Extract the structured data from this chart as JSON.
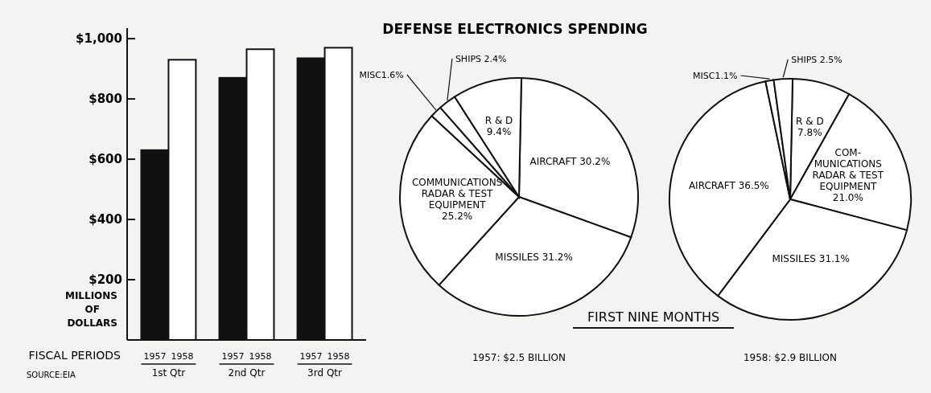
{
  "chart_data": [
    {
      "type": "bar",
      "categories": [
        "1st Qtr",
        "2nd Qtr",
        "3rd Qtr"
      ],
      "series": [
        {
          "name": "1957",
          "color": "#111111",
          "values": [
            630,
            870,
            935
          ]
        },
        {
          "name": "1958",
          "color": "#ffffff",
          "values": [
            930,
            965,
            970
          ]
        }
      ],
      "ylim": [
        0,
        1035
      ],
      "yticks": [
        {
          "value": 200,
          "label": "$200"
        },
        {
          "value": 400,
          "label": "$400"
        },
        {
          "value": 600,
          "label": "$600"
        },
        {
          "value": 800,
          "label": "$800"
        },
        {
          "value": 1000,
          "label": "$1,000"
        }
      ],
      "xlabel": "FISCAL PERIODS",
      "ylabel": "MILLIONS OF DOLLARS",
      "annotations": [
        "SOURCE:EIA"
      ],
      "grid": false
    },
    {
      "type": "pie",
      "title": "DEFENSE ELECTRONICS SPENDING",
      "subtitle": "FIRST NINE MONTHS",
      "xlabel": "1957: $2.5 BILLION",
      "categories": [
        "AIRCRAFT",
        "MISSILES",
        "COMMUNICATIONS RADAR & TEST EQUIPMENT",
        "MISC",
        "SHIPS",
        "R & D"
      ],
      "values": [
        30.2,
        31.2,
        25.2,
        1.6,
        2.4,
        9.4
      ],
      "colors": [
        "#ffffff",
        "#ffffff",
        "#ffffff",
        "#ffffff",
        "#ffffff",
        "#ffffff"
      ],
      "value_labels": [
        "30.2%",
        "31.2%",
        "25.2%",
        "1.6%",
        "2.4%",
        "9.4%"
      ]
    },
    {
      "type": "pie",
      "xlabel": "1958: $2.9 BILLION",
      "categories": [
        "R & D",
        "COM- MUNICATIONS RADAR & TEST EQUIPMENT",
        "MISSILES",
        "AIRCRAFT",
        "MISC",
        "SHIPS"
      ],
      "values": [
        7.8,
        21.0,
        31.1,
        36.5,
        1.1,
        2.5
      ],
      "colors": [
        "#ffffff",
        "#ffffff",
        "#ffffff",
        "#ffffff",
        "#ffffff",
        "#ffffff"
      ],
      "value_labels": [
        "7.8%",
        "21.0%",
        "31.1%",
        "36.5%",
        "1.1%",
        "2.5%"
      ]
    }
  ]
}
